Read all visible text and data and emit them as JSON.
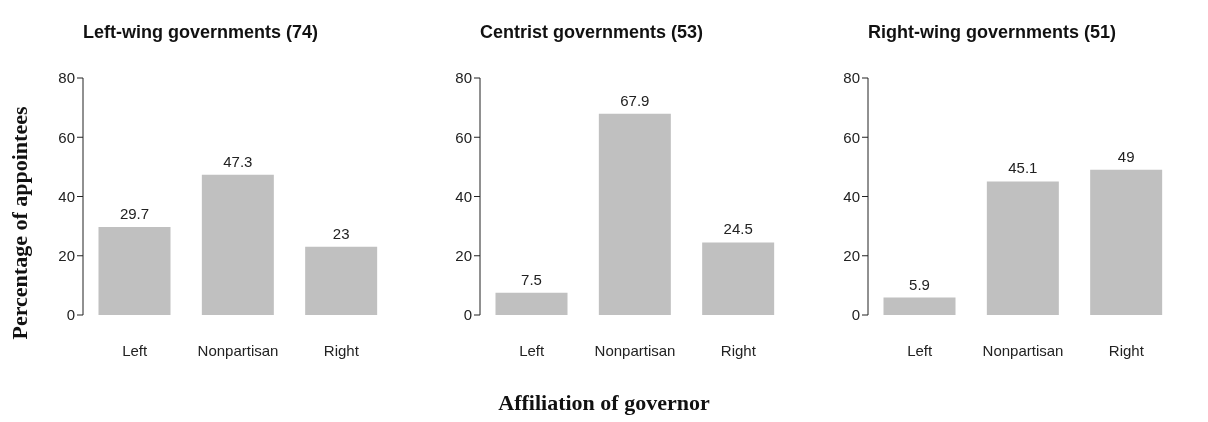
{
  "chart_data": [
    {
      "type": "bar",
      "title": "Left-wing governments (74)",
      "ylabel": "Percentage of appointees",
      "categories": [
        "Left",
        "Nonpartisan",
        "Right"
      ],
      "values": [
        29.7,
        47.3,
        23
      ],
      "color": "#c0c0c0",
      "ylim": [
        0,
        80
      ],
      "yticks": [
        0,
        20,
        40,
        60,
        80
      ],
      "data_labels": true
    },
    {
      "type": "bar",
      "title": "Centrist governments (53)",
      "xlabel": "Affiliation of governor",
      "categories": [
        "Left",
        "Nonpartisan",
        "Right"
      ],
      "values": [
        7.5,
        67.9,
        24.5
      ],
      "color": "#c0c0c0",
      "ylim": [
        0,
        80
      ],
      "yticks": [
        0,
        20,
        40,
        60,
        80
      ],
      "data_labels": true
    },
    {
      "type": "bar",
      "title": "Right-wing governments (51)",
      "categories": [
        "Left",
        "Nonpartisan",
        "Right"
      ],
      "values": [
        5.9,
        45.1,
        49
      ],
      "color": "#c0c0c0",
      "ylim": [
        0,
        80
      ],
      "yticks": [
        0,
        20,
        40,
        60,
        80
      ],
      "data_labels": true
    }
  ]
}
